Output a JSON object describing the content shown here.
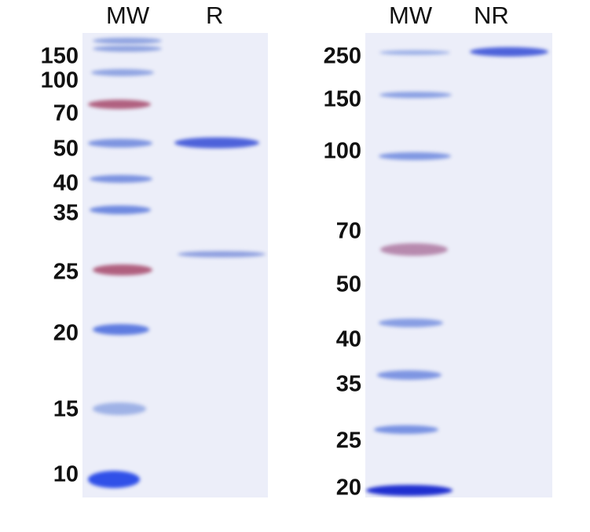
{
  "left_gel": {
    "lanes": [
      "MW",
      "R"
    ],
    "markers": [
      "150",
      "100",
      "70",
      "50",
      "40",
      "35",
      "25",
      "20",
      "15",
      "10"
    ]
  },
  "right_gel": {
    "lanes": [
      "MW",
      "NR"
    ],
    "markers": [
      "250",
      "150",
      "100",
      "70",
      "50",
      "40",
      "35",
      "25",
      "20"
    ]
  },
  "colors": {
    "band_blue": "#5a74d8",
    "marker_pink": "#b0607f",
    "gel_background": "#eceef9"
  }
}
